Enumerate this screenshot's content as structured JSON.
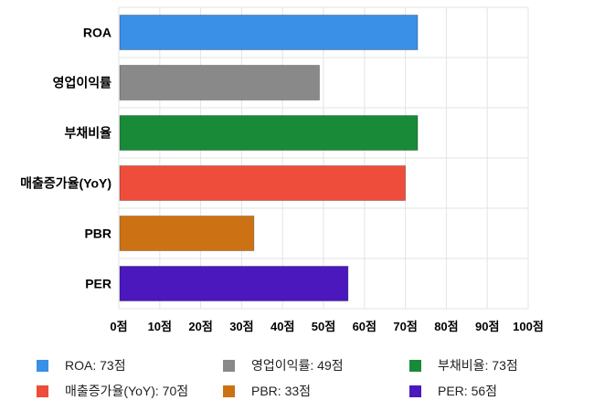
{
  "chart_data": {
    "type": "bar",
    "orientation": "horizontal",
    "categories": [
      "ROA",
      "영업이익률",
      "부채비율",
      "매출증가율(YoY)",
      "PBR",
      "PER"
    ],
    "values": [
      73,
      49,
      73,
      70,
      33,
      56
    ],
    "colors": [
      "#3a8fe6",
      "#898989",
      "#198a37",
      "#ed4d3a",
      "#cc7214",
      "#4b18be"
    ],
    "xlim": [
      0,
      100
    ],
    "xticks": [
      "0점",
      "10점",
      "20점",
      "30점",
      "40점",
      "50점",
      "60점",
      "70점",
      "80점",
      "90점",
      "100점"
    ],
    "grid": true,
    "legend_position": "bottom",
    "legend": [
      "ROA: 73점",
      "영업이익률: 49점",
      "부채비율: 73점",
      "매출증가율(YoY): 70점",
      "PBR: 33점",
      "PER: 56점"
    ]
  }
}
